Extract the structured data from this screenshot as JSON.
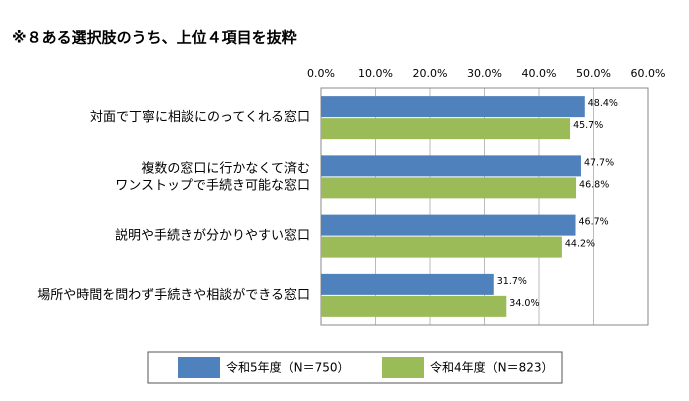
{
  "chart_data": {
    "type": "bar",
    "orientation": "horizontal",
    "title": "※８ある選択肢のうち、上位４項目を抜粋",
    "categories": [
      "対面で丁寧に相談にのってくれる窓口",
      "複数の窓口に行かなくて済む\nワンストップで手続き可能な窓口",
      "説明や手続きが分かりやすい窓口",
      "場所や時間を問わず手続きや相談ができる窓口"
    ],
    "series": [
      {
        "name": "令和5年度（N＝750）",
        "color": "#4f81bd",
        "values": [
          48.4,
          47.7,
          46.7,
          31.7
        ],
        "value_labels": [
          "48.4%",
          "47.7%",
          "46.7%",
          "31.7%"
        ]
      },
      {
        "name": "令和4年度（N＝823）",
        "color": "#9bbb59",
        "values": [
          45.7,
          46.8,
          44.2,
          34.0
        ],
        "value_labels": [
          "45.7%",
          "46.8%",
          "44.2%",
          "34.0%"
        ]
      }
    ],
    "xlim": [
      0,
      60
    ],
    "xticks": [
      {
        "value": 0,
        "label": "0.0%"
      },
      {
        "value": 10,
        "label": "10.0%"
      },
      {
        "value": 20,
        "label": "20.0%"
      },
      {
        "value": 30,
        "label": "30.0%"
      },
      {
        "value": 40,
        "label": "40.0%"
      },
      {
        "value": 50,
        "label": "50.0%"
      },
      {
        "value": 60,
        "label": "60.0%"
      }
    ],
    "grid": true,
    "legend_position": "bottom"
  }
}
